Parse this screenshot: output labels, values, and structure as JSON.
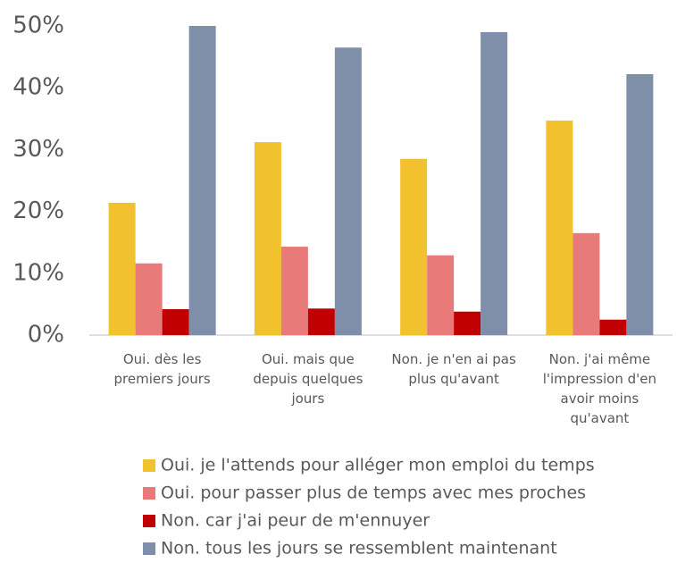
{
  "chart_data": {
    "type": "bar",
    "categories": [
      "Oui. dès les premiers jours",
      "Oui. mais que depuis quelques jours",
      "Non. je n'en ai pas plus qu'avant",
      "Non. j'ai même l'impression d'en avoir moins qu'avant"
    ],
    "series": [
      {
        "name": "Oui. je l'attends pour alléger mon emploi du temps",
        "color": "#f2c12e",
        "values": [
          21.4,
          31.2,
          28.5,
          34.7
        ]
      },
      {
        "name": "Oui. pour passer plus de temps avec mes proches",
        "color": "#e87a7a",
        "values": [
          11.6,
          14.3,
          12.9,
          16.5
        ]
      },
      {
        "name": "Non. car j'ai peur de m'ennuyer",
        "color": "#c00000",
        "values": [
          4.2,
          4.3,
          3.8,
          2.5
        ]
      },
      {
        "name": "Non. tous les jours se ressemblent maintenant",
        "color": "#7f8fa9",
        "values": [
          50,
          46.5,
          49,
          42.2
        ]
      }
    ],
    "ylim": [
      0,
      50
    ],
    "yticks": [
      {
        "value": 0,
        "label": "0%"
      },
      {
        "value": 10,
        "label": "10%"
      },
      {
        "value": 20,
        "label": "20%"
      },
      {
        "value": 30,
        "label": "30%"
      },
      {
        "value": 40,
        "label": "40%"
      },
      {
        "value": 50,
        "label": "50%"
      }
    ],
    "legend": "bottom",
    "grid": false
  }
}
